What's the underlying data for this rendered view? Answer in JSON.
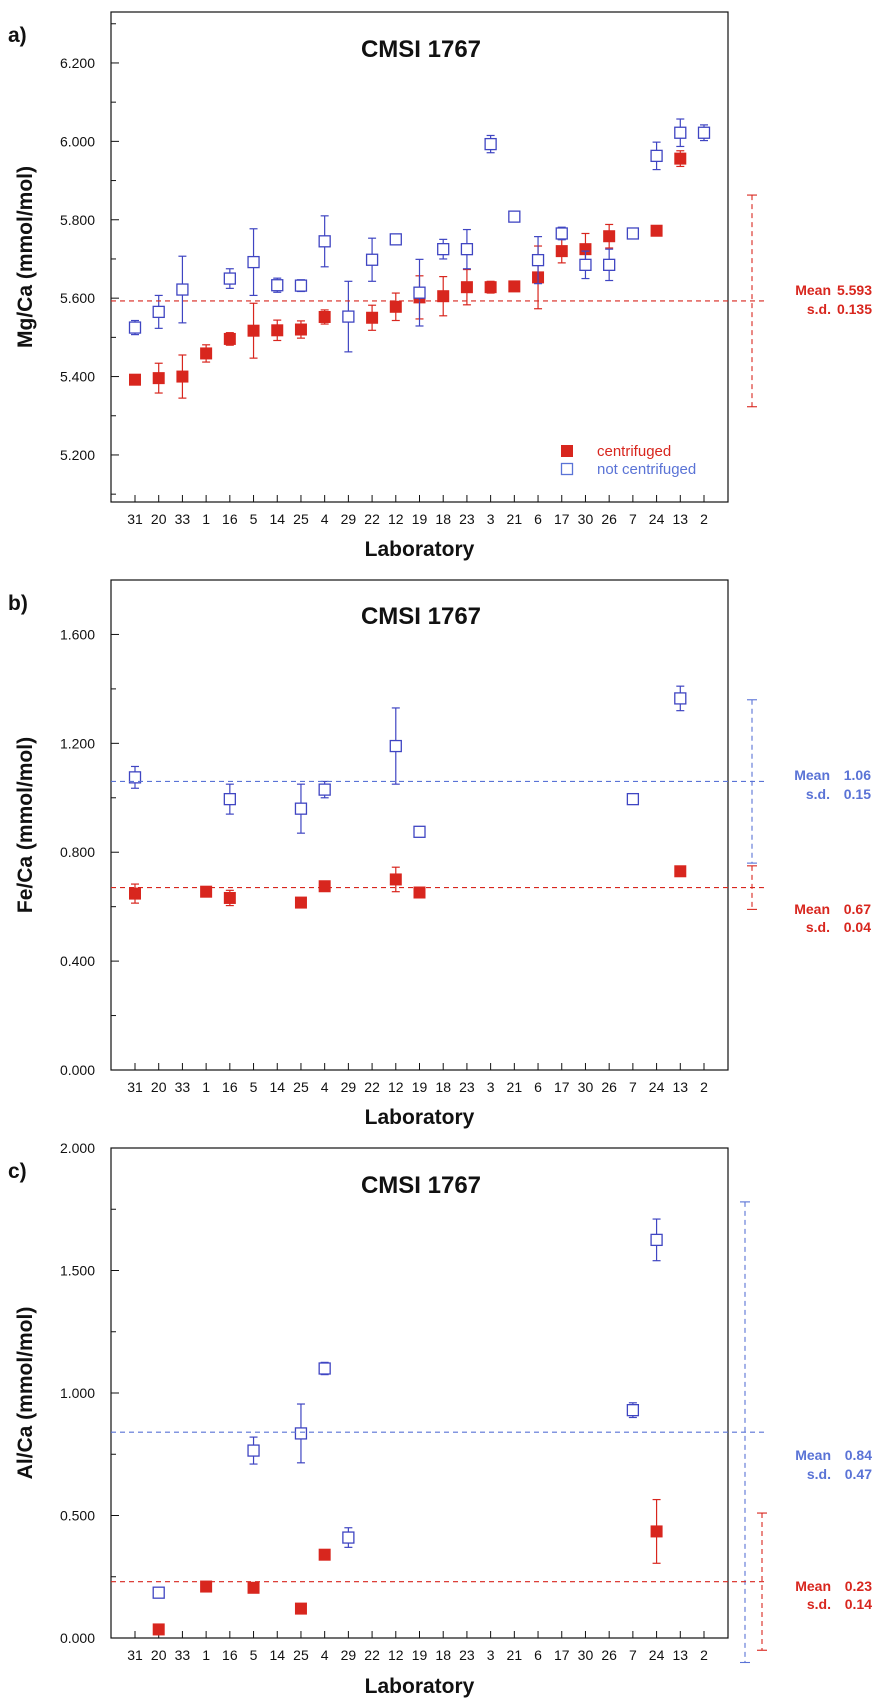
{
  "colors": {
    "centrifuged": "#d8261e",
    "not_centrifuged": "#3f45c2",
    "not_centrifuged_line": "#5a73d6"
  },
  "chart_data": [
    {
      "type": "scatter",
      "panel": "a)",
      "title": "CMSI 1767",
      "xlabel": "Laboratory",
      "ylabel": "Mg/Ca (mmol/mol)",
      "categories": [
        "31",
        "20",
        "33",
        "1",
        "16",
        "5",
        "14",
        "25",
        "4",
        "29",
        "22",
        "12",
        "19",
        "18",
        "23",
        "3",
        "21",
        "6",
        "17",
        "30",
        "26",
        "7",
        "24",
        "13",
        "2"
      ],
      "ylim": [
        5.08,
        6.33
      ],
      "yticks": [
        5.2,
        5.4,
        5.6,
        5.8,
        6.0,
        6.2
      ],
      "yticklabels": [
        "5.200",
        "5.400",
        "5.600",
        "5.800",
        "6.000",
        "6.200"
      ],
      "legend": {
        "placement": "bottom-right",
        "entries": [
          "centrifuged",
          "not centrifuged"
        ]
      },
      "series": [
        {
          "name": "centrifuged",
          "marker": "filled-square",
          "points": [
            {
              "x": "31",
              "y": 5.392,
              "err": 0.012
            },
            {
              "x": "20",
              "y": 5.396,
              "err": 0.038
            },
            {
              "x": "33",
              "y": 5.4,
              "err": 0.055
            },
            {
              "x": "1",
              "y": 5.459,
              "err": 0.022
            },
            {
              "x": "16",
              "y": 5.496,
              "err": 0.016
            },
            {
              "x": "5",
              "y": 5.517,
              "err": 0.07
            },
            {
              "x": "14",
              "y": 5.518,
              "err": 0.026
            },
            {
              "x": "25",
              "y": 5.52,
              "err": 0.022
            },
            {
              "x": "4",
              "y": 5.552,
              "err": 0.018
            },
            {
              "x": "22",
              "y": 5.55,
              "err": 0.032
            },
            {
              "x": "12",
              "y": 5.578,
              "err": 0.035
            },
            {
              "x": "19",
              "y": 5.602,
              "err": 0.055
            },
            {
              "x": "18",
              "y": 5.605,
              "err": 0.05
            },
            {
              "x": "23",
              "y": 5.628,
              "err": 0.045
            },
            {
              "x": "3",
              "y": 5.628,
              "err": 0.015
            },
            {
              "x": "21",
              "y": 5.63,
              "err": 0.008
            },
            {
              "x": "6",
              "y": 5.653,
              "err": 0.08
            },
            {
              "x": "17",
              "y": 5.72,
              "err": 0.03
            },
            {
              "x": "30",
              "y": 5.725,
              "err": 0.04
            },
            {
              "x": "26",
              "y": 5.758,
              "err": 0.03
            },
            {
              "x": "24",
              "y": 5.772,
              "err": 0.008
            },
            {
              "x": "13",
              "y": 5.956,
              "err": 0.02
            }
          ]
        },
        {
          "name": "not centrifuged",
          "marker": "open-square",
          "points": [
            {
              "x": "31",
              "y": 5.525,
              "err": 0.018
            },
            {
              "x": "20",
              "y": 5.565,
              "err": 0.042
            },
            {
              "x": "33",
              "y": 5.622,
              "err": 0.085
            },
            {
              "x": "16",
              "y": 5.65,
              "err": 0.025
            },
            {
              "x": "5",
              "y": 5.692,
              "err": 0.085
            },
            {
              "x": "14",
              "y": 5.633,
              "err": 0.018
            },
            {
              "x": "25",
              "y": 5.632,
              "err": 0.015
            },
            {
              "x": "4",
              "y": 5.745,
              "err": 0.065
            },
            {
              "x": "29",
              "y": 5.553,
              "err": 0.09
            },
            {
              "x": "22",
              "y": 5.698,
              "err": 0.055
            },
            {
              "x": "12",
              "y": 5.75,
              "err": 0.01
            },
            {
              "x": "19",
              "y": 5.614,
              "err": 0.085
            },
            {
              "x": "18",
              "y": 5.725,
              "err": 0.025
            },
            {
              "x": "23",
              "y": 5.725,
              "err": 0.05
            },
            {
              "x": "3",
              "y": 5.993,
              "err": 0.022
            },
            {
              "x": "21",
              "y": 5.808,
              "err": 0.01
            },
            {
              "x": "6",
              "y": 5.697,
              "err": 0.06
            },
            {
              "x": "17",
              "y": 5.765,
              "err": 0.016
            },
            {
              "x": "30",
              "y": 5.685,
              "err": 0.035
            },
            {
              "x": "26",
              "y": 5.685,
              "err": 0.04
            },
            {
              "x": "7",
              "y": 5.765,
              "err": 0.01
            },
            {
              "x": "24",
              "y": 5.963,
              "err": 0.035
            },
            {
              "x": "13",
              "y": 6.022,
              "err": 0.035
            },
            {
              "x": "2",
              "y": 6.022,
              "err": 0.02
            }
          ]
        }
      ],
      "stats": [
        {
          "group": "centrifuged",
          "mean": 5.593,
          "sd": 0.135,
          "mean_label": "Mean",
          "mean_text": "5.593",
          "sd_label": "s.d.",
          "sd_text": "0.135"
        }
      ]
    },
    {
      "type": "scatter",
      "panel": "b)",
      "title": "CMSI 1767",
      "xlabel": "Laboratory",
      "ylabel": "Fe/Ca (mmol/mol)",
      "categories": [
        "31",
        "20",
        "33",
        "1",
        "16",
        "5",
        "14",
        "25",
        "4",
        "29",
        "22",
        "12",
        "19",
        "18",
        "23",
        "3",
        "21",
        "6",
        "17",
        "30",
        "26",
        "7",
        "24",
        "13",
        "2"
      ],
      "ylim": [
        0.0,
        1.8
      ],
      "yticks": [
        0.0,
        0.4,
        0.8,
        1.2,
        1.6
      ],
      "yticklabels": [
        "0.000",
        "0.400",
        "0.800",
        "1.200",
        "1.600"
      ],
      "series": [
        {
          "name": "centrifuged",
          "marker": "filled-square",
          "points": [
            {
              "x": "31",
              "y": 0.648,
              "err": 0.035
            },
            {
              "x": "1",
              "y": 0.655,
              "err": 0.01
            },
            {
              "x": "16",
              "y": 0.632,
              "err": 0.028
            },
            {
              "x": "25",
              "y": 0.615,
              "err": 0.012
            },
            {
              "x": "4",
              "y": 0.675,
              "err": 0.012
            },
            {
              "x": "12",
              "y": 0.7,
              "err": 0.045
            },
            {
              "x": "19",
              "y": 0.652,
              "err": 0.012
            },
            {
              "x": "13",
              "y": 0.73,
              "err": 0.012
            }
          ]
        },
        {
          "name": "not centrifuged",
          "marker": "open-square",
          "points": [
            {
              "x": "31",
              "y": 1.075,
              "err": 0.04
            },
            {
              "x": "16",
              "y": 0.995,
              "err": 0.055
            },
            {
              "x": "25",
              "y": 0.96,
              "err": 0.09
            },
            {
              "x": "4",
              "y": 1.03,
              "err": 0.03
            },
            {
              "x": "12",
              "y": 1.19,
              "err": 0.14
            },
            {
              "x": "19",
              "y": 0.875,
              "err": 0.01
            },
            {
              "x": "7",
              "y": 0.995,
              "err": 0.012
            },
            {
              "x": "13",
              "y": 1.365,
              "err": 0.045
            }
          ]
        }
      ],
      "stats": [
        {
          "group": "not centrifuged",
          "mean": 1.06,
          "sd": 0.15,
          "mean_label": "Mean",
          "mean_text": "1.06",
          "sd_label": "s.d.",
          "sd_text": "0.15"
        },
        {
          "group": "centrifuged",
          "mean": 0.67,
          "sd": 0.04,
          "mean_label": "Mean",
          "mean_text": "0.67",
          "sd_label": "s.d.",
          "sd_text": "0.04"
        }
      ]
    },
    {
      "type": "scatter",
      "panel": "c)",
      "title": "CMSI 1767",
      "xlabel": "Laboratory",
      "ylabel": "Al/Ca (mmol/mol)",
      "categories": [
        "31",
        "20",
        "33",
        "1",
        "16",
        "5",
        "14",
        "25",
        "4",
        "29",
        "22",
        "12",
        "19",
        "18",
        "23",
        "3",
        "21",
        "6",
        "17",
        "30",
        "26",
        "7",
        "24",
        "13",
        "2"
      ],
      "ylim": [
        0.0,
        2.0
      ],
      "yticks": [
        0.0,
        0.5,
        1.0,
        1.5,
        2.0
      ],
      "yticklabels": [
        "0.000",
        "0.500",
        "1.000",
        "1.500",
        "2.000"
      ],
      "series": [
        {
          "name": "centrifuged",
          "marker": "filled-square",
          "points": [
            {
              "x": "20",
              "y": 0.035,
              "err": 0.008
            },
            {
              "x": "1",
              "y": 0.21,
              "err": 0.01
            },
            {
              "x": "5",
              "y": 0.205,
              "err": 0.015
            },
            {
              "x": "25",
              "y": 0.12,
              "err": 0.01
            },
            {
              "x": "4",
              "y": 0.34,
              "err": 0.01
            },
            {
              "x": "24",
              "y": 0.435,
              "err": 0.13
            }
          ]
        },
        {
          "name": "not centrifuged",
          "marker": "open-square",
          "points": [
            {
              "x": "20",
              "y": 0.185,
              "err": 0.015
            },
            {
              "x": "5",
              "y": 0.765,
              "err": 0.055
            },
            {
              "x": "25",
              "y": 0.835,
              "err": 0.12
            },
            {
              "x": "4",
              "y": 1.1,
              "err": 0.025
            },
            {
              "x": "29",
              "y": 0.41,
              "err": 0.04
            },
            {
              "x": "7",
              "y": 0.93,
              "err": 0.03
            },
            {
              "x": "24",
              "y": 1.625,
              "err": 0.085
            }
          ]
        }
      ],
      "stats": [
        {
          "group": "not centrifuged",
          "mean": 0.84,
          "sd": 0.47,
          "mean_label": "Mean",
          "mean_text": "0.84",
          "sd_label": "s.d.",
          "sd_text": "0.47"
        },
        {
          "group": "centrifuged",
          "mean": 0.23,
          "sd": 0.14,
          "mean_label": "Mean",
          "mean_text": "0.23",
          "sd_label": "s.d.",
          "sd_text": "0.14"
        }
      ]
    }
  ]
}
